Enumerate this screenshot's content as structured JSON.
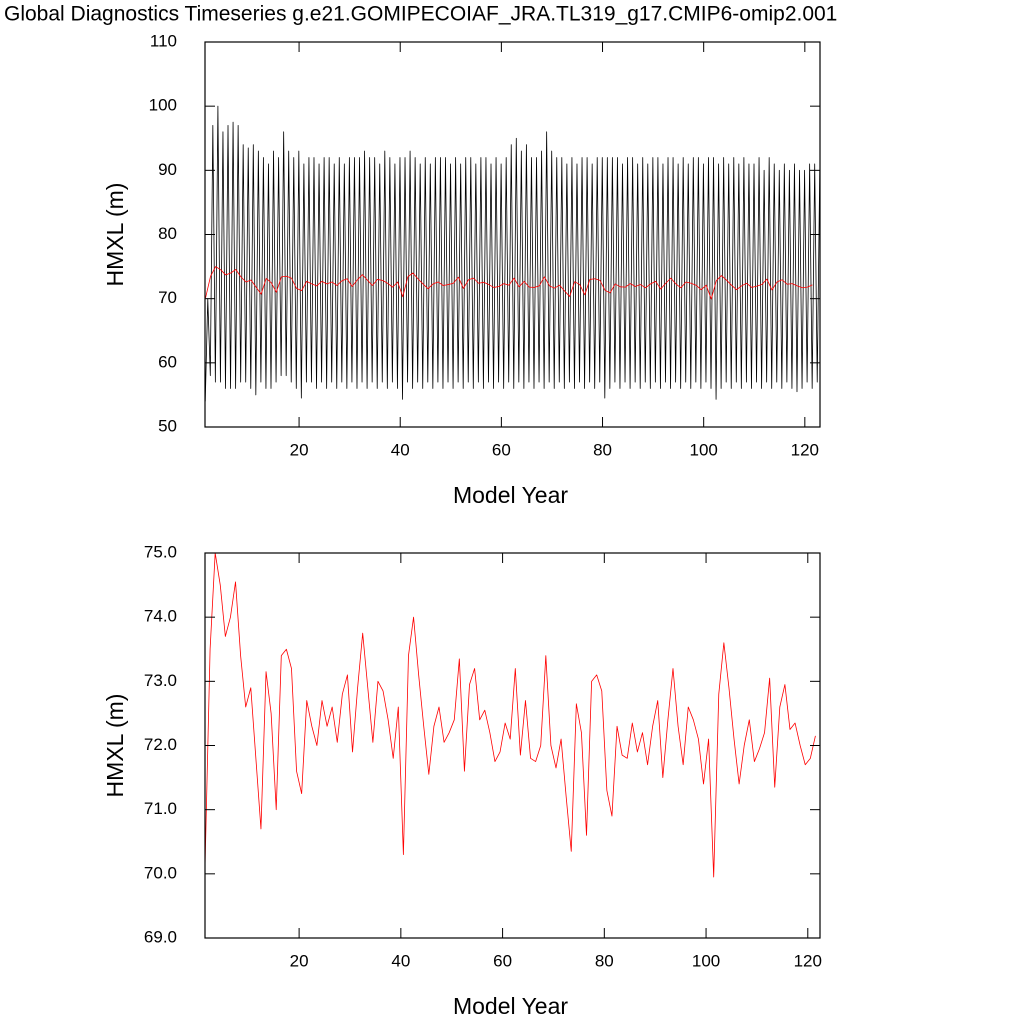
{
  "title": "Global Diagnostics Timeseries g.e21.GOMIPECOIAF_JRA.TL319_g17.CMIP6-omip2.001",
  "chart_data": [
    {
      "type": "line",
      "xlabel": "Model Year",
      "ylabel": "HMXL (m)",
      "xlim": [
        1.4,
        123
      ],
      "xticks": [
        20,
        40,
        60,
        80,
        100,
        120
      ],
      "ylim": [
        50,
        110
      ],
      "yticks": [
        50,
        60,
        70,
        80,
        90,
        100,
        110
      ],
      "series": [
        {
          "color": "#000000",
          "x": [
            1.45,
            1.95,
            2.45,
            2.95,
            3.45,
            3.95,
            4.45,
            4.95,
            5.45,
            5.95,
            6.45,
            6.95,
            7.45,
            7.95,
            8.45,
            8.95,
            9.45,
            9.95,
            10.45,
            10.95,
            11.45,
            11.95,
            12.45,
            12.95,
            13.45,
            13.95,
            14.45,
            14.95,
            15.45,
            15.95,
            16.45,
            16.95,
            17.45,
            17.95,
            18.45,
            18.95,
            19.45,
            19.95,
            20.45,
            20.95,
            21.45,
            21.95,
            22.45,
            22.95,
            23.45,
            23.95,
            24.45,
            24.95,
            25.45,
            25.95,
            26.45,
            26.95,
            27.45,
            27.95,
            28.45,
            28.95,
            29.45,
            29.95,
            30.45,
            30.95,
            31.45,
            31.95,
            32.45,
            32.95,
            33.45,
            33.95,
            34.45,
            34.95,
            35.45,
            35.95,
            36.45,
            36.95,
            37.45,
            37.95,
            38.45,
            38.95,
            39.45,
            39.95,
            40.45,
            40.95,
            41.45,
            41.95,
            42.45,
            42.95,
            43.45,
            43.95,
            44.45,
            44.95,
            45.45,
            45.95,
            46.45,
            46.95,
            47.45,
            47.95,
            48.45,
            48.95,
            49.45,
            49.95,
            50.45,
            50.95,
            51.45,
            51.95,
            52.45,
            52.95,
            53.45,
            53.95,
            54.45,
            54.95,
            55.45,
            55.95,
            56.45,
            56.95,
            57.45,
            57.95,
            58.45,
            58.95,
            59.45,
            59.95,
            60.45,
            60.95,
            61.45,
            61.95,
            62.45,
            62.95,
            63.45,
            63.95,
            64.45,
            64.95,
            65.45,
            65.95,
            66.45,
            66.95,
            67.45,
            67.95,
            68.45,
            68.95,
            69.45,
            69.95,
            70.45,
            70.95,
            71.45,
            71.95,
            72.45,
            72.95,
            73.45,
            73.95,
            74.45,
            74.95,
            75.45,
            75.95,
            76.45,
            76.95,
            77.45,
            77.95,
            78.45,
            78.95,
            79.45,
            79.95,
            80.45,
            80.95,
            81.45,
            81.95,
            82.45,
            82.95,
            83.45,
            83.95,
            84.45,
            84.95,
            85.45,
            85.95,
            86.45,
            86.95,
            87.45,
            87.95,
            88.45,
            88.95,
            89.45,
            89.95,
            90.45,
            90.95,
            91.45,
            91.95,
            92.45,
            92.95,
            93.45,
            93.95,
            94.45,
            94.95,
            95.45,
            95.95,
            96.45,
            96.95,
            97.45,
            97.95,
            98.45,
            98.95,
            99.45,
            99.95,
            100.45,
            100.95,
            101.45,
            101.95,
            102.45,
            102.95,
            103.45,
            103.95,
            104.45,
            104.95,
            105.45,
            105.95,
            106.45,
            106.95,
            107.45,
            107.95,
            108.45,
            108.95,
            109.45,
            109.95,
            110.45,
            110.95,
            111.45,
            111.95,
            112.45,
            112.95,
            113.45,
            113.95,
            114.45,
            114.95,
            115.45,
            115.95,
            116.45,
            116.95,
            117.45,
            117.95,
            118.45,
            118.95,
            119.45,
            119.95,
            120.45,
            120.95,
            121.45,
            121.95,
            122.45,
            122.95
          ],
          "values": [
            54,
            70,
            58,
            97,
            57,
            100,
            57,
            96,
            56,
            97,
            56,
            97.5,
            56,
            97,
            57,
            94,
            57,
            93.5,
            56,
            94,
            55,
            93,
            57,
            92,
            56,
            91,
            56,
            93,
            57,
            92,
            58,
            96,
            58,
            93,
            57,
            92,
            56,
            93,
            54.5,
            91,
            57,
            92,
            57,
            92,
            56,
            91,
            57,
            92,
            56,
            92,
            57,
            91,
            56,
            92,
            57,
            91,
            56,
            92,
            57,
            92,
            56,
            92,
            57,
            93,
            56,
            92,
            57,
            92,
            56,
            91,
            57,
            93,
            56,
            92,
            57,
            91,
            56,
            92,
            54.3,
            92,
            57,
            93,
            56,
            92,
            57,
            91,
            56,
            92,
            57,
            91,
            56,
            92,
            57,
            92,
            56,
            92,
            57,
            91,
            56,
            92,
            57,
            91,
            56,
            92,
            57,
            92,
            56,
            91,
            57,
            92,
            56,
            92,
            57,
            91,
            56,
            92,
            57,
            91,
            56,
            92,
            57,
            94,
            56,
            95,
            57,
            93,
            56,
            94,
            57,
            92,
            56,
            92,
            57,
            93,
            56,
            96,
            57,
            93,
            56,
            92,
            57,
            92,
            56,
            91,
            57,
            92,
            56,
            91,
            57,
            92,
            56,
            92,
            57,
            91,
            56,
            92,
            57,
            92,
            54.5,
            92,
            56,
            92,
            57,
            92,
            56,
            91,
            57,
            92,
            56,
            92,
            57,
            91,
            56,
            92,
            57,
            91,
            56,
            92,
            57,
            92,
            56,
            91,
            57,
            92,
            56,
            92,
            57,
            91,
            56,
            92,
            57,
            91,
            56,
            92,
            57,
            92,
            56,
            91,
            57,
            92,
            56,
            92,
            54.3,
            91,
            56,
            92,
            57,
            91,
            56,
            92,
            57,
            91,
            56,
            92,
            57,
            91,
            56,
            91,
            57,
            92,
            56,
            90,
            57,
            92,
            56,
            91,
            57,
            90,
            56,
            91,
            57,
            90,
            56,
            91,
            55.5,
            90,
            56,
            90,
            57,
            91,
            56,
            91,
            57,
            90
          ]
        },
        {
          "color": "#ff0000",
          "x": [
            1.5,
            2.5,
            3.5,
            4.5,
            5.5,
            6.5,
            7.5,
            8.5,
            9.5,
            10.5,
            11.5,
            12.5,
            13.5,
            14.5,
            15.5,
            16.5,
            17.5,
            18.5,
            19.5,
            20.5,
            21.5,
            22.5,
            23.5,
            24.5,
            25.5,
            26.5,
            27.5,
            28.5,
            29.5,
            30.5,
            31.5,
            32.5,
            33.5,
            34.5,
            35.5,
            36.5,
            37.5,
            38.5,
            39.5,
            40.5,
            41.5,
            42.5,
            43.5,
            44.5,
            45.5,
            46.5,
            47.5,
            48.5,
            49.5,
            50.5,
            51.5,
            52.5,
            53.5,
            54.5,
            55.5,
            56.5,
            57.5,
            58.5,
            59.5,
            60.5,
            61.5,
            62.5,
            63.5,
            64.5,
            65.5,
            66.5,
            67.5,
            68.5,
            69.5,
            70.5,
            71.5,
            72.5,
            73.5,
            74.5,
            75.5,
            76.5,
            77.5,
            78.5,
            79.5,
            80.5,
            81.5,
            82.5,
            83.5,
            84.5,
            85.5,
            86.5,
            87.5,
            88.5,
            89.5,
            90.5,
            91.5,
            92.5,
            93.5,
            94.5,
            95.5,
            96.5,
            97.5,
            98.5,
            99.5,
            100.5,
            101.5,
            102.5,
            103.5,
            104.5,
            105.5,
            106.5,
            107.5,
            108.5,
            109.5,
            110.5,
            111.5,
            112.5,
            113.5,
            114.5,
            115.5,
            116.5,
            117.5,
            118.5,
            119.5,
            120.5,
            121.5
          ],
          "values": [
            70.1,
            73.5,
            75.0,
            74.5,
            73.7,
            74.0,
            74.55,
            73.4,
            72.6,
            72.9,
            71.8,
            70.7,
            73.15,
            72.5,
            71.0,
            73.4,
            73.5,
            73.2,
            71.6,
            71.25,
            72.7,
            72.3,
            72.0,
            72.7,
            72.3,
            72.6,
            72.05,
            72.8,
            73.1,
            71.9,
            72.9,
            73.75,
            72.9,
            72.05,
            73.0,
            72.85,
            72.4,
            71.8,
            72.6,
            70.3,
            73.4,
            74.0,
            73.1,
            72.3,
            71.55,
            72.3,
            72.6,
            72.05,
            72.2,
            72.4,
            73.35,
            71.6,
            72.95,
            73.2,
            72.4,
            72.55,
            72.2,
            71.75,
            71.9,
            72.35,
            72.1,
            73.2,
            71.85,
            72.7,
            71.8,
            71.75,
            72.0,
            73.4,
            72.0,
            71.65,
            72.1,
            71.2,
            70.35,
            72.65,
            72.2,
            70.6,
            73.0,
            73.1,
            72.85,
            71.3,
            70.9,
            72.3,
            71.85,
            71.8,
            72.35,
            71.9,
            72.2,
            71.7,
            72.3,
            72.7,
            71.5,
            72.4,
            73.2,
            72.3,
            71.7,
            72.6,
            72.4,
            72.1,
            71.4,
            72.1,
            69.95,
            72.8,
            73.6,
            72.9,
            72.1,
            71.4,
            72.0,
            72.4,
            71.75,
            71.95,
            72.2,
            73.05,
            71.35,
            72.6,
            72.95,
            72.25,
            72.35,
            72.0,
            71.7,
            71.8,
            72.15
          ]
        }
      ]
    },
    {
      "type": "line",
      "xlabel": "Model Year",
      "ylabel": "HMXL (m)",
      "xlim": [
        1.5,
        122.4
      ],
      "xticks": [
        20,
        40,
        60,
        80,
        100,
        120
      ],
      "ylim": [
        69,
        75
      ],
      "yticks": [
        {
          "value": 69,
          "label": "69.0"
        },
        {
          "value": 70,
          "label": "70.0"
        },
        {
          "value": 71,
          "label": "71.0"
        },
        {
          "value": 72,
          "label": "72.0"
        },
        {
          "value": 73,
          "label": "73.0"
        },
        {
          "value": 74,
          "label": "74.0"
        },
        {
          "value": 75,
          "label": "75.0"
        }
      ],
      "series": [
        {
          "color": "#ff0000",
          "x": [
            1.5,
            2.5,
            3.5,
            4.5,
            5.5,
            6.5,
            7.5,
            8.5,
            9.5,
            10.5,
            11.5,
            12.5,
            13.5,
            14.5,
            15.5,
            16.5,
            17.5,
            18.5,
            19.5,
            20.5,
            21.5,
            22.5,
            23.5,
            24.5,
            25.5,
            26.5,
            27.5,
            28.5,
            29.5,
            30.5,
            31.5,
            32.5,
            33.5,
            34.5,
            35.5,
            36.5,
            37.5,
            38.5,
            39.5,
            40.5,
            41.5,
            42.5,
            43.5,
            44.5,
            45.5,
            46.5,
            47.5,
            48.5,
            49.5,
            50.5,
            51.5,
            52.5,
            53.5,
            54.5,
            55.5,
            56.5,
            57.5,
            58.5,
            59.5,
            60.5,
            61.5,
            62.5,
            63.5,
            64.5,
            65.5,
            66.5,
            67.5,
            68.5,
            69.5,
            70.5,
            71.5,
            72.5,
            73.5,
            74.5,
            75.5,
            76.5,
            77.5,
            78.5,
            79.5,
            80.5,
            81.5,
            82.5,
            83.5,
            84.5,
            85.5,
            86.5,
            87.5,
            88.5,
            89.5,
            90.5,
            91.5,
            92.5,
            93.5,
            94.5,
            95.5,
            96.5,
            97.5,
            98.5,
            99.5,
            100.5,
            101.5,
            102.5,
            103.5,
            104.5,
            105.5,
            106.5,
            107.5,
            108.5,
            109.5,
            110.5,
            111.5,
            112.5,
            113.5,
            114.5,
            115.5,
            116.5,
            117.5,
            118.5,
            119.5,
            120.5,
            121.5
          ],
          "values": [
            70.1,
            73.5,
            75.0,
            74.5,
            73.7,
            74.0,
            74.55,
            73.4,
            72.6,
            72.9,
            71.8,
            70.7,
            73.15,
            72.5,
            71.0,
            73.4,
            73.5,
            73.2,
            71.6,
            71.25,
            72.7,
            72.3,
            72.0,
            72.7,
            72.3,
            72.6,
            72.05,
            72.8,
            73.1,
            71.9,
            72.9,
            73.75,
            72.9,
            72.05,
            73.0,
            72.85,
            72.4,
            71.8,
            72.6,
            70.3,
            73.4,
            74.0,
            73.1,
            72.3,
            71.55,
            72.3,
            72.6,
            72.05,
            72.2,
            72.4,
            73.35,
            71.6,
            72.95,
            73.2,
            72.4,
            72.55,
            72.2,
            71.75,
            71.9,
            72.35,
            72.1,
            73.2,
            71.85,
            72.7,
            71.8,
            71.75,
            72.0,
            73.4,
            72.0,
            71.65,
            72.1,
            71.2,
            70.35,
            72.65,
            72.2,
            70.6,
            73.0,
            73.1,
            72.85,
            71.3,
            70.9,
            72.3,
            71.85,
            71.8,
            72.35,
            71.9,
            72.2,
            71.7,
            72.3,
            72.7,
            71.5,
            72.4,
            73.2,
            72.3,
            71.7,
            72.6,
            72.4,
            72.1,
            71.4,
            72.1,
            69.95,
            72.8,
            73.6,
            72.9,
            72.1,
            71.4,
            72.0,
            72.4,
            71.75,
            71.95,
            72.2,
            73.05,
            71.35,
            72.6,
            72.95,
            72.25,
            72.35,
            72.0,
            71.7,
            71.8,
            72.15
          ]
        }
      ]
    }
  ]
}
